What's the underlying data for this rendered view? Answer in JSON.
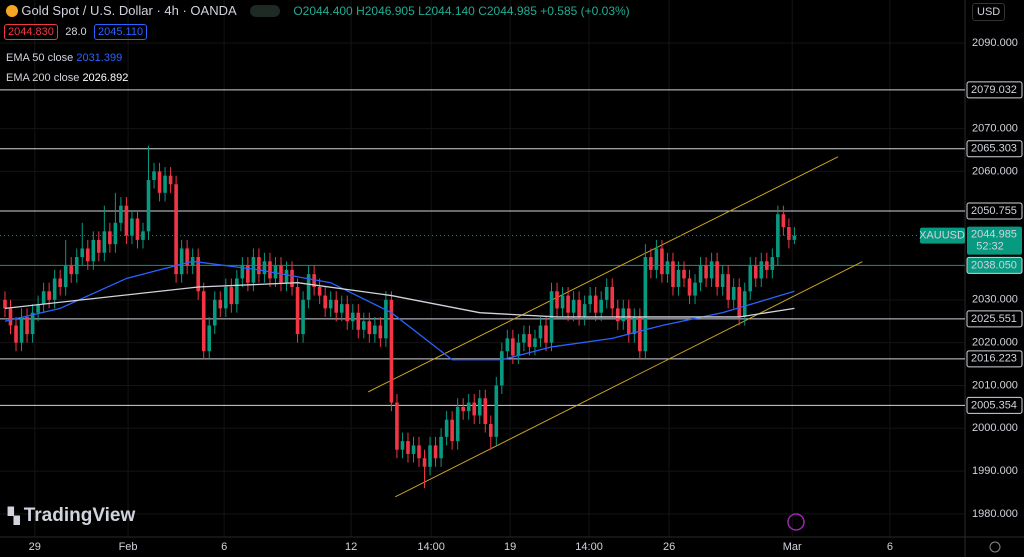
{
  "chart_data": {
    "type": "candlestick",
    "title": "Gold Spot / U.S. Dollar · 4h · OANDA",
    "ohlc_legend": [
      "O2044.400",
      "H2046.905",
      "L2044.140",
      "C2044.985",
      "+0.585 (+0.03%)"
    ],
    "bid": "2044.830",
    "spread": "28.0",
    "ask": "2045.110",
    "currency": "USD",
    "brand": "TradingView",
    "up_color": "#089981",
    "down_color": "#f23645",
    "ylim": [
      1974.6,
      2100.04
    ],
    "yticks": [
      {
        "value": 1980,
        "label": "1980.000"
      },
      {
        "value": 1990,
        "label": "1990.000"
      },
      {
        "value": 2000,
        "label": "2000.000"
      },
      {
        "value": 2010,
        "label": "2010.000"
      },
      {
        "value": 2020,
        "label": "2020.000"
      },
      {
        "value": 2030,
        "label": "2030.000"
      },
      {
        "value": 2060,
        "label": "2060.000"
      },
      {
        "value": 2070,
        "label": "2070.000"
      },
      {
        "value": 2090,
        "label": "2090.000"
      }
    ],
    "xlim": [
      -0.9,
      173.9
    ],
    "xticks": [
      {
        "value": 5.4,
        "label": "29"
      },
      {
        "value": 22.3,
        "label": "Feb"
      },
      {
        "value": 39.7,
        "label": "6"
      },
      {
        "value": 62.7,
        "label": "12"
      },
      {
        "value": 77.2,
        "label": "14:00"
      },
      {
        "value": 91.5,
        "label": "19"
      },
      {
        "value": 105.8,
        "label": "14:00"
      },
      {
        "value": 120.3,
        "label": "26"
      },
      {
        "value": 142.6,
        "label": "Mar"
      },
      {
        "value": 160.3,
        "label": "6"
      }
    ],
    "candles": [
      [
        2030,
        2032,
        2026,
        2028
      ],
      [
        2028,
        2030,
        2022,
        2024
      ],
      [
        2024,
        2026,
        2018,
        2020
      ],
      [
        2020,
        2028,
        2018,
        2026
      ],
      [
        2026,
        2028,
        2020,
        2022
      ],
      [
        2022,
        2029,
        2020,
        2027
      ],
      [
        2027,
        2031,
        2025,
        2029
      ],
      [
        2029,
        2034,
        2027,
        2032
      ],
      [
        2032,
        2034,
        2028,
        2030
      ],
      [
        2030,
        2037,
        2028,
        2035
      ],
      [
        2035,
        2037,
        2031,
        2033
      ],
      [
        2033,
        2044,
        2031,
        2038
      ],
      [
        2038,
        2040,
        2034,
        2036
      ],
      [
        2036,
        2042,
        2034,
        2040
      ],
      [
        2040,
        2048,
        2038,
        2042
      ],
      [
        2042,
        2044,
        2037,
        2039
      ],
      [
        2039,
        2046,
        2037,
        2044
      ],
      [
        2044,
        2046,
        2039,
        2041
      ],
      [
        2041,
        2052,
        2039,
        2046
      ],
      [
        2046,
        2048,
        2041,
        2043
      ],
      [
        2043,
        2055,
        2041,
        2048
      ],
      [
        2048,
        2054,
        2046,
        2052
      ],
      [
        2052,
        2054,
        2043,
        2045
      ],
      [
        2045,
        2051,
        2043,
        2049
      ],
      [
        2049,
        2051,
        2042,
        2044
      ],
      [
        2044,
        2048,
        2042,
        2046
      ],
      [
        2046,
        2066,
        2044,
        2058
      ],
      [
        2058,
        2062,
        2056,
        2060
      ],
      [
        2060,
        2062,
        2053,
        2055
      ],
      [
        2055,
        2061,
        2053,
        2059
      ],
      [
        2059,
        2061,
        2055,
        2057
      ],
      [
        2057,
        2059,
        2034,
        2036
      ],
      [
        2036,
        2044,
        2034,
        2042
      ],
      [
        2042,
        2044,
        2036,
        2038
      ],
      [
        2038,
        2042,
        2036,
        2040
      ],
      [
        2040,
        2042,
        2030,
        2032
      ],
      [
        2032,
        2034,
        2016,
        2018
      ],
      [
        2018,
        2026,
        2016,
        2024
      ],
      [
        2024,
        2032,
        2022,
        2030
      ],
      [
        2030,
        2032,
        2026,
        2028
      ],
      [
        2028,
        2035,
        2026,
        2033
      ],
      [
        2033,
        2035,
        2027,
        2029
      ],
      [
        2029,
        2037,
        2027,
        2035
      ],
      [
        2035,
        2040,
        2033,
        2038
      ],
      [
        2038,
        2040,
        2032,
        2034
      ],
      [
        2034,
        2042,
        2032,
        2040
      ],
      [
        2040,
        2042,
        2034,
        2036
      ],
      [
        2036,
        2041,
        2034,
        2039
      ],
      [
        2039,
        2041,
        2033,
        2035
      ],
      [
        2035,
        2040,
        2033,
        2038
      ],
      [
        2038,
        2040,
        2032,
        2034
      ],
      [
        2034,
        2039,
        2032,
        2037
      ],
      [
        2037,
        2039,
        2031,
        2033
      ],
      [
        2033,
        2035,
        2020,
        2022
      ],
      [
        2022,
        2032,
        2020,
        2030
      ],
      [
        2030,
        2038,
        2028,
        2036
      ],
      [
        2036,
        2038,
        2031,
        2033
      ],
      [
        2033,
        2035,
        2029,
        2031
      ],
      [
        2031,
        2033,
        2026,
        2028
      ],
      [
        2028,
        2032,
        2026,
        2030
      ],
      [
        2030,
        2032,
        2025,
        2027
      ],
      [
        2027,
        2031,
        2025,
        2029
      ],
      [
        2029,
        2031,
        2023,
        2025
      ],
      [
        2025,
        2029,
        2023,
        2027
      ],
      [
        2027,
        2029,
        2021,
        2023
      ],
      [
        2023,
        2027,
        2021,
        2025
      ],
      [
        2025,
        2027,
        2020,
        2022
      ],
      [
        2022,
        2026,
        2020,
        2024
      ],
      [
        2024,
        2026,
        2019,
        2021
      ],
      [
        2021,
        2032,
        2019,
        2030
      ],
      [
        2030,
        2032,
        2004,
        2006
      ],
      [
        2006,
        2008,
        1993,
        1995
      ],
      [
        1995,
        1999,
        1993,
        1997
      ],
      [
        1997,
        1999,
        1992,
        1994
      ],
      [
        1994,
        1998,
        1992,
        1996
      ],
      [
        1996,
        1998,
        1991,
        1993
      ],
      [
        1993,
        1995,
        1986,
        1991
      ],
      [
        1991,
        1998,
        1989,
        1996
      ],
      [
        1996,
        1998,
        1991,
        1993
      ],
      [
        1993,
        2000,
        1991,
        1998
      ],
      [
        1998,
        2004,
        1996,
        2002
      ],
      [
        2002,
        2004,
        1995,
        1997
      ],
      [
        1997,
        2007,
        1995,
        2005
      ],
      [
        2005,
        2007,
        2002,
        2004
      ],
      [
        2004,
        2008,
        2002,
        2006
      ],
      [
        2006,
        2008,
        2001,
        2003
      ],
      [
        2003,
        2009,
        2001,
        2007
      ],
      [
        2007,
        2009,
        1999,
        2001
      ],
      [
        2001,
        2003,
        1995,
        1998
      ],
      [
        1998,
        2012,
        1996,
        2010
      ],
      [
        2010,
        2020,
        2008,
        2018
      ],
      [
        2018,
        2023,
        2016,
        2021
      ],
      [
        2021,
        2023,
        2015,
        2017
      ],
      [
        2017,
        2022,
        2015,
        2020
      ],
      [
        2020,
        2024,
        2018,
        2022
      ],
      [
        2022,
        2024,
        2017,
        2019
      ],
      [
        2019,
        2023,
        2017,
        2021
      ],
      [
        2021,
        2026,
        2019,
        2024
      ],
      [
        2024,
        2026,
        2018,
        2020
      ],
      [
        2020,
        2034,
        2018,
        2032
      ],
      [
        2032,
        2034,
        2026,
        2028
      ],
      [
        2028,
        2033,
        2026,
        2031
      ],
      [
        2031,
        2033,
        2025,
        2027
      ],
      [
        2027,
        2032,
        2025,
        2030
      ],
      [
        2030,
        2032,
        2024,
        2026
      ],
      [
        2026,
        2031,
        2024,
        2029
      ],
      [
        2029,
        2033,
        2027,
        2031
      ],
      [
        2031,
        2033,
        2025,
        2027
      ],
      [
        2027,
        2032,
        2025,
        2030
      ],
      [
        2030,
        2035,
        2028,
        2033
      ],
      [
        2033,
        2035,
        2026,
        2028
      ],
      [
        2028,
        2030,
        2023,
        2025
      ],
      [
        2025,
        2030,
        2023,
        2028
      ],
      [
        2028,
        2030,
        2020,
        2022
      ],
      [
        2022,
        2028,
        2020,
        2026
      ],
      [
        2026,
        2028,
        2016,
        2018
      ],
      [
        2018,
        2043,
        2016,
        2040
      ],
      [
        2040,
        2042,
        2035,
        2037
      ],
      [
        2037,
        2044,
        2035,
        2042
      ],
      [
        2042,
        2044,
        2034,
        2036
      ],
      [
        2036,
        2041,
        2034,
        2039
      ],
      [
        2039,
        2041,
        2031,
        2033
      ],
      [
        2033,
        2039,
        2031,
        2037
      ],
      [
        2037,
        2039,
        2033,
        2035
      ],
      [
        2035,
        2037,
        2029,
        2031
      ],
      [
        2031,
        2036,
        2029,
        2034
      ],
      [
        2034,
        2040,
        2032,
        2038
      ],
      [
        2038,
        2040,
        2033,
        2035
      ],
      [
        2035,
        2041,
        2033,
        2039
      ],
      [
        2039,
        2041,
        2031,
        2033
      ],
      [
        2033,
        2038,
        2031,
        2036
      ],
      [
        2036,
        2038,
        2028,
        2030
      ],
      [
        2030,
        2035,
        2028,
        2033
      ],
      [
        2033,
        2035,
        2024,
        2026
      ],
      [
        2026,
        2034,
        2024,
        2032
      ],
      [
        2032,
        2040,
        2030,
        2038
      ],
      [
        2038,
        2040,
        2033,
        2035
      ],
      [
        2035,
        2041,
        2033,
        2039
      ],
      [
        2039,
        2041,
        2035,
        2037
      ],
      [
        2037,
        2042,
        2035,
        2040
      ],
      [
        2040,
        2052,
        2038,
        2050
      ],
      [
        2050,
        2052,
        2045,
        2047
      ],
      [
        2047,
        2049,
        2042,
        2044
      ],
      [
        2044,
        2047,
        2043,
        2045
      ]
    ],
    "series": [
      {
        "name": "EMA 50 close",
        "legend_value": "2031.399",
        "color": "#2962ff",
        "x": [
          0,
          10,
          22,
          34,
          46,
          59,
          70,
          81,
          90,
          99,
          110,
          119,
          130,
          143
        ],
        "values": [
          2025,
          2028,
          2035,
          2039,
          2037,
          2034,
          2027,
          2016,
          2016,
          2019,
          2021,
          2024,
          2027,
          2032
        ]
      },
      {
        "name": "EMA 200 close",
        "legend_value": "2026.892",
        "color": "#d1d4dc",
        "x": [
          0,
          35,
          53,
          70,
          86,
          100,
          117,
          133,
          143
        ],
        "values": [
          2028,
          2033,
          2034,
          2031,
          2027,
          2026,
          2026,
          2026,
          2028
        ]
      }
    ],
    "trendlines": [
      {
        "color": "#c9a227",
        "x": [
          65.8,
          150.9
        ],
        "values": [
          2008.5,
          2063.4
        ]
      },
      {
        "color": "#c9a227",
        "x": [
          70.7,
          155.3
        ],
        "values": [
          1984,
          2038.9
        ]
      }
    ],
    "levels": [
      2079.032,
      2065.303,
      2050.755,
      {
        "value": 2038.05,
        "label": "2038.050"
      },
      2025.551,
      2016.223,
      2005.354
    ],
    "level_color": "#d1d4dc",
    "last_price": {
      "symbol": "XAUUSD",
      "value": 2044.985,
      "countdown": "52:32",
      "color": "#089981"
    }
  }
}
